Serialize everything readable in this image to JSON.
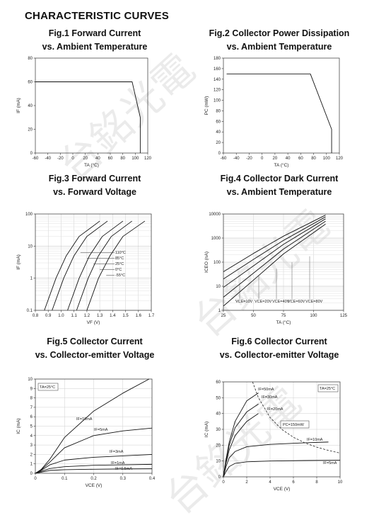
{
  "heading": "CHARACTERISTIC CURVES",
  "watermark": "台銘光電",
  "figures": [
    {
      "title1": "Fig.1 Forward Current",
      "title2": "vs. Ambient Temperature"
    },
    {
      "title1": "Fig.2 Collector Power Dissipation",
      "title2": "vs. Ambient Temperature"
    },
    {
      "title1": "Fig.3 Forward Current",
      "title2": "vs. Forward Voltage"
    },
    {
      "title1": "Fig.4 Collector Dark Current",
      "title2": "vs. Ambient Temperature"
    },
    {
      "title1": "Fig.5 Collector Current",
      "title2": "vs. Collector-emitter Voltage"
    },
    {
      "title1": "Fig.6 Collector Current",
      "title2": "vs. Collector-emitter Voltage"
    }
  ],
  "chart_data": [
    {
      "type": "line",
      "xlabel": "TA (°C)",
      "ylabel": "IF (mA)",
      "xlim": [
        -60,
        120
      ],
      "ylim": [
        0,
        80
      ],
      "xticks": [
        -60,
        -40,
        -20,
        0,
        20,
        40,
        60,
        80,
        100,
        120
      ],
      "yticks": [
        0,
        20,
        40,
        60,
        80
      ],
      "grid": false,
      "series": [
        {
          "x": [
            -60,
            95,
            108,
            108
          ],
          "y": [
            60,
            60,
            30,
            0
          ]
        }
      ]
    },
    {
      "type": "line",
      "xlabel": "TA (°C)",
      "ylabel": "PC (mW)",
      "xlim": [
        -60,
        120
      ],
      "ylim": [
        0,
        180
      ],
      "xticks": [
        -60,
        -40,
        -20,
        0,
        20,
        40,
        60,
        80,
        100,
        120
      ],
      "yticks": [
        0,
        20,
        40,
        60,
        80,
        100,
        120,
        140,
        160,
        180
      ],
      "grid": false,
      "series": [
        {
          "x": [
            -55,
            75,
            108,
            108
          ],
          "y": [
            150,
            150,
            45,
            0
          ]
        }
      ]
    },
    {
      "type": "line",
      "xlabel": "VF (V)",
      "ylabel": "IF (mA)",
      "xscale": "linear",
      "yscale": "log",
      "xlim": [
        0.8,
        1.7
      ],
      "ylim": [
        0.1,
        100
      ],
      "xticks": [
        "0.8",
        "0.9",
        "1.0",
        "1.1",
        "1.2",
        "1.3",
        "1.4",
        "1.5",
        "1.6",
        "1.7"
      ],
      "yticks": [
        "0.1",
        "1",
        "10",
        "100"
      ],
      "grid": true,
      "series": [
        {
          "name": "110°C",
          "x": [
            0.87,
            0.96,
            1.04,
            1.14,
            1.3
          ],
          "y": [
            0.1,
            1,
            5,
            20,
            60
          ]
        },
        {
          "name": "85°C",
          "x": [
            0.93,
            1.02,
            1.1,
            1.2,
            1.36
          ],
          "y": [
            0.1,
            1,
            5,
            20,
            60
          ]
        },
        {
          "name": "25°C",
          "x": [
            1.05,
            1.14,
            1.22,
            1.32,
            1.48
          ],
          "y": [
            0.1,
            1,
            5,
            20,
            60
          ]
        },
        {
          "name": "0°C",
          "x": [
            1.12,
            1.21,
            1.29,
            1.39,
            1.55
          ],
          "y": [
            0.1,
            1,
            5,
            20,
            60
          ]
        },
        {
          "name": "-55°C",
          "x": [
            1.2,
            1.29,
            1.38,
            1.48,
            1.65
          ],
          "y": [
            0.1,
            1,
            5,
            20,
            60
          ]
        }
      ]
    },
    {
      "type": "line",
      "xlabel": "TA (°C)",
      "ylabel": "ICEO (nA)",
      "xscale": "linear",
      "yscale": "log",
      "xlim": [
        25,
        125
      ],
      "ylim": [
        1,
        10000
      ],
      "xticks": [
        "25",
        "50",
        "75",
        "100",
        "125"
      ],
      "yticks": [
        "1",
        "10",
        "100",
        "1000",
        "10000"
      ],
      "grid": true,
      "series": [
        {
          "name": "VCE=10V",
          "x": [
            25,
            50,
            75,
            110
          ],
          "y": [
            1.5,
            18,
            220,
            3800
          ]
        },
        {
          "name": "VCE=20V",
          "x": [
            25,
            50,
            75,
            110
          ],
          "y": [
            3.5,
            35,
            350,
            5000
          ]
        },
        {
          "name": "VCE=40V",
          "x": [
            25,
            50,
            75,
            110
          ],
          "y": [
            9,
            70,
            550,
            6300
          ]
        },
        {
          "name": "VCE=60V",
          "x": [
            25,
            50,
            75,
            110
          ],
          "y": [
            20,
            130,
            800,
            7600
          ]
        },
        {
          "name": "VCE=80V",
          "x": [
            25,
            50,
            75,
            110
          ],
          "y": [
            40,
            230,
            1200,
            9000
          ]
        }
      ]
    },
    {
      "type": "line",
      "xlabel": "VCE (V)",
      "ylabel": "IC (mA)",
      "xlim": [
        0,
        0.4
      ],
      "ylim": [
        0,
        10
      ],
      "xticks": [
        "0",
        "0.1",
        "0.2",
        "0.3",
        "0.4"
      ],
      "yticks": [
        "0",
        "1",
        "2",
        "3",
        "4",
        "5",
        "6",
        "7",
        "8",
        "9",
        "10"
      ],
      "grid": true,
      "annotation": "TA=25°C",
      "series": [
        {
          "name": "IF=10mA",
          "x": [
            0,
            0.02,
            0.05,
            0.1,
            0.2,
            0.3,
            0.39
          ],
          "y": [
            0,
            0.4,
            1.5,
            3.8,
            6.6,
            8.5,
            10
          ]
        },
        {
          "name": "IF=5mA",
          "x": [
            0,
            0.02,
            0.05,
            0.1,
            0.2,
            0.3,
            0.4
          ],
          "y": [
            0,
            0.35,
            1.2,
            2.7,
            4.0,
            4.5,
            4.8
          ]
        },
        {
          "name": "IF=3mA",
          "x": [
            0,
            0.02,
            0.05,
            0.1,
            0.2,
            0.3,
            0.4
          ],
          "y": [
            0,
            0.3,
            0.9,
            1.4,
            1.7,
            1.85,
            2.0
          ]
        },
        {
          "name": "IF=1mA",
          "x": [
            0,
            0.02,
            0.05,
            0.1,
            0.2,
            0.3,
            0.4
          ],
          "y": [
            0,
            0.2,
            0.5,
            0.7,
            0.85,
            0.9,
            0.95
          ]
        },
        {
          "name": "IF=0.5mA",
          "x": [
            0,
            0.02,
            0.05,
            0.1,
            0.2,
            0.3,
            0.4
          ],
          "y": [
            0,
            0.12,
            0.3,
            0.38,
            0.43,
            0.46,
            0.48
          ]
        }
      ]
    },
    {
      "type": "line",
      "xlabel": "VCE (V)",
      "ylabel": "IC (mA)",
      "xlim": [
        0,
        10
      ],
      "ylim": [
        0,
        60
      ],
      "xticks": [
        "0",
        "2",
        "4",
        "6",
        "8",
        "10"
      ],
      "yticks": [
        "0",
        "10",
        "20",
        "30",
        "40",
        "50",
        "60"
      ],
      "grid": true,
      "annotation": "TA=25°C",
      "power_limit_label": "PC=150mW",
      "power_limit": {
        "x": [
          2.5,
          3,
          4,
          5,
          6,
          7,
          8,
          9,
          10
        ],
        "y": [
          60,
          50,
          37.5,
          30,
          25,
          21.4,
          18.75,
          16.7,
          15
        ]
      },
      "series": [
        {
          "name": "IF=50mA",
          "x": [
            0,
            0.2,
            0.5,
            1,
            2,
            3
          ],
          "y": [
            0,
            10,
            22,
            35,
            48,
            53
          ]
        },
        {
          "name": "IF=30mA",
          "x": [
            0,
            0.2,
            0.5,
            1,
            2,
            3
          ],
          "y": [
            0,
            9,
            20,
            31,
            41,
            46
          ]
        },
        {
          "name": "IF=20mA",
          "x": [
            0,
            0.2,
            0.5,
            1,
            2,
            3
          ],
          "y": [
            0,
            8,
            17,
            26,
            35,
            40
          ]
        },
        {
          "name": "IF=10mA",
          "x": [
            0,
            0.2,
            0.5,
            1,
            2,
            4,
            7,
            9
          ],
          "y": [
            0,
            6,
            12,
            16,
            19,
            20.5,
            21.5,
            22
          ]
        },
        {
          "name": "IF=5mA",
          "x": [
            0,
            0.2,
            0.5,
            1,
            2,
            4,
            7,
            10
          ],
          "y": [
            0,
            3,
            6.5,
            8.5,
            9.5,
            10,
            10.3,
            10.5
          ]
        }
      ]
    }
  ]
}
